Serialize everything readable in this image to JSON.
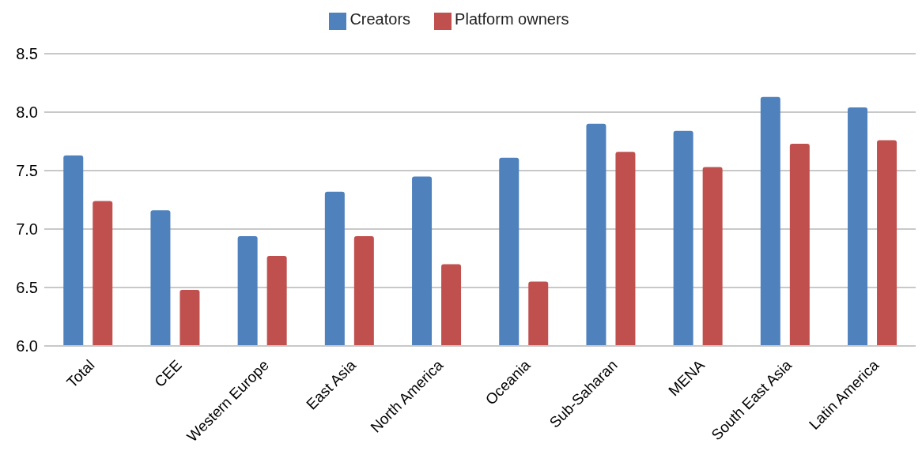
{
  "chart_data": {
    "type": "bar",
    "categories": [
      "Total",
      "CEE",
      "Western Europe",
      "East Asia",
      "North America",
      "Oceania",
      "Sub-Saharan",
      "MENA",
      "South East Asia",
      "Latin America"
    ],
    "series": [
      {
        "name": "Creators",
        "color": "#4f81bd",
        "values": [
          7.63,
          7.16,
          6.94,
          7.32,
          7.45,
          7.61,
          7.9,
          7.84,
          8.13,
          8.04
        ]
      },
      {
        "name": "Platform owners",
        "color": "#c0504d",
        "values": [
          7.24,
          6.48,
          6.77,
          6.94,
          6.7,
          6.55,
          7.66,
          7.53,
          7.73,
          7.76
        ]
      }
    ],
    "ylim": [
      6.0,
      8.5
    ],
    "yticks": [
      {
        "value": 6,
        "label": "6.0"
      },
      {
        "value": 6.5,
        "label": "6.5"
      },
      {
        "value": 7,
        "label": "7.0"
      },
      {
        "value": 7.5,
        "label": "7.5"
      },
      {
        "value": 8,
        "label": "8.0"
      },
      {
        "value": 8.5,
        "label": "8.5"
      }
    ],
    "grid": "y",
    "legend": "top"
  }
}
